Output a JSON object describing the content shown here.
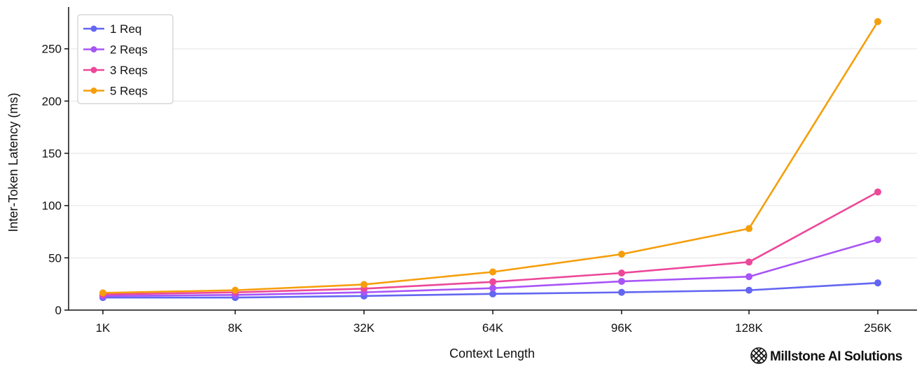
{
  "chart_data": {
    "type": "line",
    "title": "",
    "xlabel": "Context Length",
    "ylabel": "Inter-Token Latency (ms)",
    "categories": [
      "1K",
      "8K",
      "32K",
      "64K",
      "96K",
      "128K",
      "256K"
    ],
    "ylim": [
      0,
      290
    ],
    "yticks": [
      0,
      50,
      100,
      150,
      200,
      250
    ],
    "grid": true,
    "legend": "top-left",
    "series": [
      {
        "name": "1 Req",
        "color": "#6366f1",
        "values": [
          12,
          12,
          13.5,
          15.5,
          17,
          19,
          26
        ]
      },
      {
        "name": "2 Reqs",
        "color": "#a855f7",
        "values": [
          13.5,
          14.5,
          17,
          21,
          27.5,
          32,
          67.5
        ]
      },
      {
        "name": "3 Reqs",
        "color": "#ec4899",
        "values": [
          15,
          17,
          20.5,
          27,
          35.5,
          46,
          113
        ]
      },
      {
        "name": "5 Reqs",
        "color": "#f59e0b",
        "values": [
          16.5,
          19,
          24.5,
          36.5,
          53.5,
          78,
          276
        ]
      }
    ]
  },
  "branding": {
    "logo_text": "Millstone AI Solutions",
    "logo_icon": "sphere-logo-icon"
  }
}
